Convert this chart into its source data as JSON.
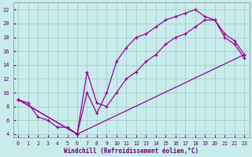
{
  "xlabel": "Windchill (Refroidissement éolien,°C)",
  "bg_color": "#c8ecec",
  "grid_color": "#b0c8c8",
  "line_color": "#990099",
  "xlim": [
    -0.5,
    23.5
  ],
  "ylim": [
    3.5,
    23.0
  ],
  "xticks": [
    0,
    1,
    2,
    3,
    4,
    5,
    6,
    7,
    8,
    9,
    10,
    11,
    12,
    13,
    14,
    15,
    16,
    17,
    18,
    19,
    20,
    21,
    22,
    23
  ],
  "yticks": [
    4,
    6,
    8,
    10,
    12,
    14,
    16,
    18,
    20,
    22
  ],
  "series1_x": [
    0,
    1,
    2,
    3,
    4,
    5,
    6,
    7,
    8,
    9,
    10,
    11,
    12,
    13,
    14,
    15,
    16,
    17,
    18,
    19,
    20,
    21,
    22,
    23
  ],
  "series1_y": [
    9.0,
    8.5,
    6.5,
    6.0,
    5.0,
    5.0,
    4.0,
    10.0,
    7.0,
    10.0,
    14.5,
    16.5,
    18.0,
    18.5,
    19.5,
    20.5,
    21.0,
    21.5,
    22.0,
    21.0,
    20.5,
    18.0,
    17.0,
    15.0
  ],
  "series2_x": [
    0,
    6,
    7,
    8,
    9,
    10,
    11,
    12,
    13,
    14,
    15,
    16,
    17,
    18,
    19,
    20,
    21,
    22,
    23
  ],
  "series2_y": [
    9.0,
    4.0,
    13.0,
    8.5,
    8.0,
    10.0,
    12.0,
    13.0,
    14.5,
    15.5,
    17.0,
    18.0,
    18.5,
    19.5,
    20.5,
    20.5,
    18.5,
    17.5,
    15.5
  ],
  "series3_x": [
    0,
    6,
    23
  ],
  "series3_y": [
    9.0,
    4.0,
    15.5
  ]
}
